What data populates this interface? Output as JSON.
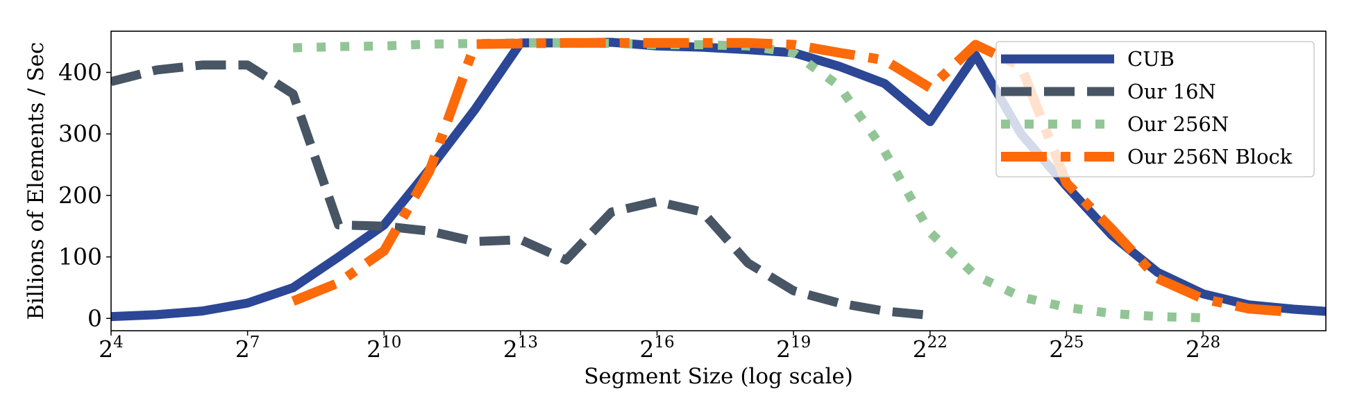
{
  "chart_data": {
    "type": "line",
    "title": "",
    "xlabel": "Segment Size (log scale)",
    "ylabel": "Billions of Elements / Sec",
    "xscale": "log2",
    "xlim_exp": [
      4,
      30.7
    ],
    "ylim": [
      -20,
      467
    ],
    "x_ticks": [
      {
        "base": "2",
        "exp": "4",
        "value": 4
      },
      {
        "base": "2",
        "exp": "7",
        "value": 7
      },
      {
        "base": "2",
        "exp": "10",
        "value": 10
      },
      {
        "base": "2",
        "exp": "13",
        "value": 13
      },
      {
        "base": "2",
        "exp": "16",
        "value": 16
      },
      {
        "base": "2",
        "exp": "19",
        "value": 19
      },
      {
        "base": "2",
        "exp": "22",
        "value": 22
      },
      {
        "base": "2",
        "exp": "25",
        "value": 25
      },
      {
        "base": "2",
        "exp": "28",
        "value": 28
      }
    ],
    "y_ticks": [
      {
        "label": "0",
        "value": 0
      },
      {
        "label": "100",
        "value": 100
      },
      {
        "label": "200",
        "value": 200
      },
      {
        "label": "300",
        "value": 300
      },
      {
        "label": "400",
        "value": 400
      }
    ],
    "grid": false,
    "legend_position": "top-right",
    "series": [
      {
        "name": "CUB",
        "color": "#2b4795",
        "style": "solid",
        "x_exp": [
          4,
          5,
          6,
          7,
          8,
          9,
          10,
          11,
          12,
          13,
          14,
          15,
          16,
          17,
          18,
          19,
          20,
          21,
          22,
          23,
          24,
          25,
          26,
          27,
          28,
          29,
          30,
          31
        ],
        "values": [
          3,
          6,
          12,
          25,
          50,
          100,
          152,
          243,
          340,
          448,
          448,
          449,
          443,
          441,
          437,
          432,
          410,
          382,
          320,
          428,
          300,
          215,
          135,
          75,
          40,
          22,
          15,
          10
        ]
      },
      {
        "name": "Our 16N",
        "color": "#475564",
        "style": "dashed",
        "x_exp": [
          4,
          5,
          6,
          7,
          8,
          9,
          10,
          11,
          12,
          13,
          14,
          15,
          16,
          17,
          18,
          19,
          20,
          21,
          22
        ],
        "values": [
          385,
          404,
          412,
          412,
          365,
          152,
          150,
          142,
          125,
          128,
          95,
          173,
          190,
          173,
          90,
          45,
          25,
          12,
          5
        ]
      },
      {
        "name": "Our 256N",
        "color": "#92c595",
        "style": "dotted",
        "x_exp": [
          8,
          9,
          10,
          11,
          12,
          13,
          14,
          15,
          16,
          17,
          18,
          19,
          20,
          21,
          22,
          23,
          24,
          25,
          26,
          27,
          28
        ],
        "values": [
          440,
          442,
          443,
          446,
          447,
          448,
          448,
          447,
          445,
          445,
          443,
          432,
          378,
          272,
          140,
          70,
          35,
          18,
          8,
          3,
          1
        ]
      },
      {
        "name": "Our 256N Block",
        "color": "#fc6a0a",
        "style": "dashdot",
        "x_exp": [
          8,
          9,
          10,
          11,
          12,
          13,
          14,
          15,
          16,
          17,
          18,
          19,
          20,
          21,
          22,
          23,
          24,
          25,
          26,
          27,
          28,
          29,
          30
        ],
        "values": [
          28,
          58,
          110,
          240,
          446,
          447,
          448,
          448,
          448,
          448,
          448,
          445,
          432,
          420,
          375,
          445,
          410,
          220,
          145,
          65,
          32,
          16,
          10
        ]
      }
    ]
  }
}
